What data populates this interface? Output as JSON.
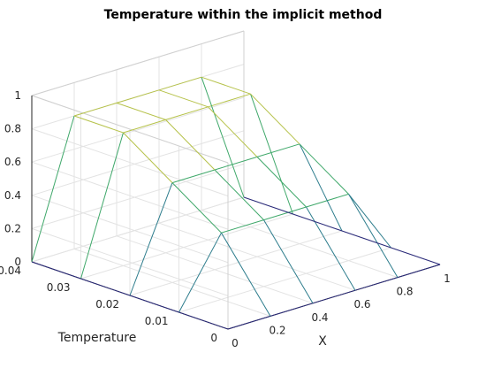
{
  "chart_data": {
    "type": "surface",
    "title": "Temperature within the implicit method",
    "xlabel": "X",
    "ylabel": "Temperature",
    "zlabel": "",
    "x": [
      0,
      0.2,
      0.4,
      0.6,
      0.8,
      1
    ],
    "t": [
      0,
      0.01,
      0.02,
      0.03,
      0.04
    ],
    "z": [
      [
        0,
        0,
        0,
        0,
        0,
        0
      ],
      [
        0,
        0.4,
        0.4,
        0.4,
        0.4,
        0
      ],
      [
        0,
        0.6,
        0.6,
        0.6,
        0.6,
        0
      ],
      [
        0,
        0.8,
        0.8,
        0.8,
        0.8,
        0
      ],
      [
        0,
        0.8,
        0.8,
        0.8,
        0.8,
        0
      ]
    ],
    "xlim": [
      0,
      1
    ],
    "tlim": [
      0,
      0.04
    ],
    "zlim": [
      0,
      1
    ],
    "x_ticks": [
      "0",
      "0.2",
      "0.4",
      "0.6",
      "0.8",
      "1"
    ],
    "t_ticks": [
      "0",
      "0.01",
      "0.02",
      "0.03",
      "0.04"
    ],
    "z_ticks": [
      "0",
      "0.2",
      "0.4",
      "0.6",
      "0.8",
      "1"
    ],
    "grid": true,
    "colormap": [
      "#2a2a7a",
      "#2c7c8c",
      "#3fa86a",
      "#b6c24a",
      "#f2ee1a"
    ]
  }
}
